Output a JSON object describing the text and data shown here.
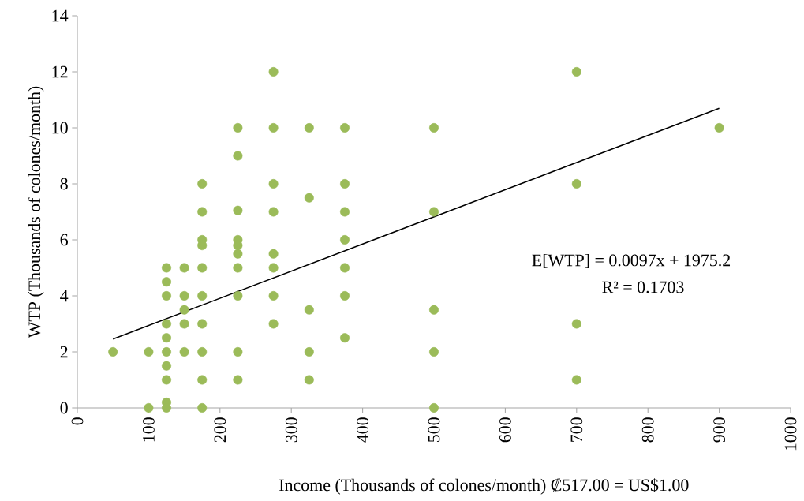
{
  "chart_data": {
    "type": "scatter",
    "xlabel": "Income (Thousands of colones/month) ₡517.00 = US$1.00",
    "ylabel": "WTP (Thousands of colones/month)",
    "xlim": [
      0,
      1000
    ],
    "xticks": [
      0,
      100,
      200,
      300,
      400,
      500,
      600,
      700,
      800,
      900,
      1000
    ],
    "ylim": [
      0,
      14
    ],
    "yticks": [
      0,
      2,
      4,
      6,
      8,
      10,
      12,
      14
    ],
    "grid": false,
    "marker": "circle",
    "series": [
      {
        "color": "#9bbb59",
        "x": [
          50,
          100,
          100,
          125,
          125,
          125,
          125,
          125,
          125,
          125,
          125,
          125,
          125,
          150,
          150,
          150,
          150,
          150,
          175,
          175,
          175,
          175,
          175,
          175,
          175,
          175,
          175,
          175,
          225,
          225,
          225,
          225,
          225,
          225,
          225,
          225,
          225,
          225,
          275,
          275,
          275,
          275,
          275,
          275,
          275,
          275,
          325,
          325,
          325,
          325,
          325,
          375,
          375,
          375,
          375,
          375,
          375,
          375,
          500,
          500,
          500,
          500,
          500,
          700,
          700,
          700,
          700,
          900
        ],
        "values": [
          2,
          2,
          0,
          5,
          4.5,
          4,
          3,
          2.5,
          2,
          1.5,
          1,
          0.2,
          0,
          5,
          4,
          3.5,
          3,
          2,
          8,
          7,
          6,
          5.8,
          5,
          4,
          3,
          2,
          1,
          0,
          10,
          9,
          7.05,
          6,
          5.8,
          5.5,
          5,
          4,
          2,
          1,
          12,
          10,
          8,
          7,
          5.5,
          5,
          4,
          3,
          10,
          7.5,
          3.5,
          2,
          1,
          10,
          8,
          7,
          6,
          5,
          4,
          2.5,
          10,
          7,
          3.5,
          2,
          0,
          12,
          8,
          3,
          1,
          10
        ]
      },
      {
        "type": "line",
        "marker": "none",
        "color": "#000000",
        "x": [
          50,
          900
        ],
        "values": [
          2.46,
          10.7
        ]
      }
    ],
    "annotations": [
      "E[WTP] = 0.0097x + 1975.2",
      "R² = 0.1703"
    ]
  }
}
